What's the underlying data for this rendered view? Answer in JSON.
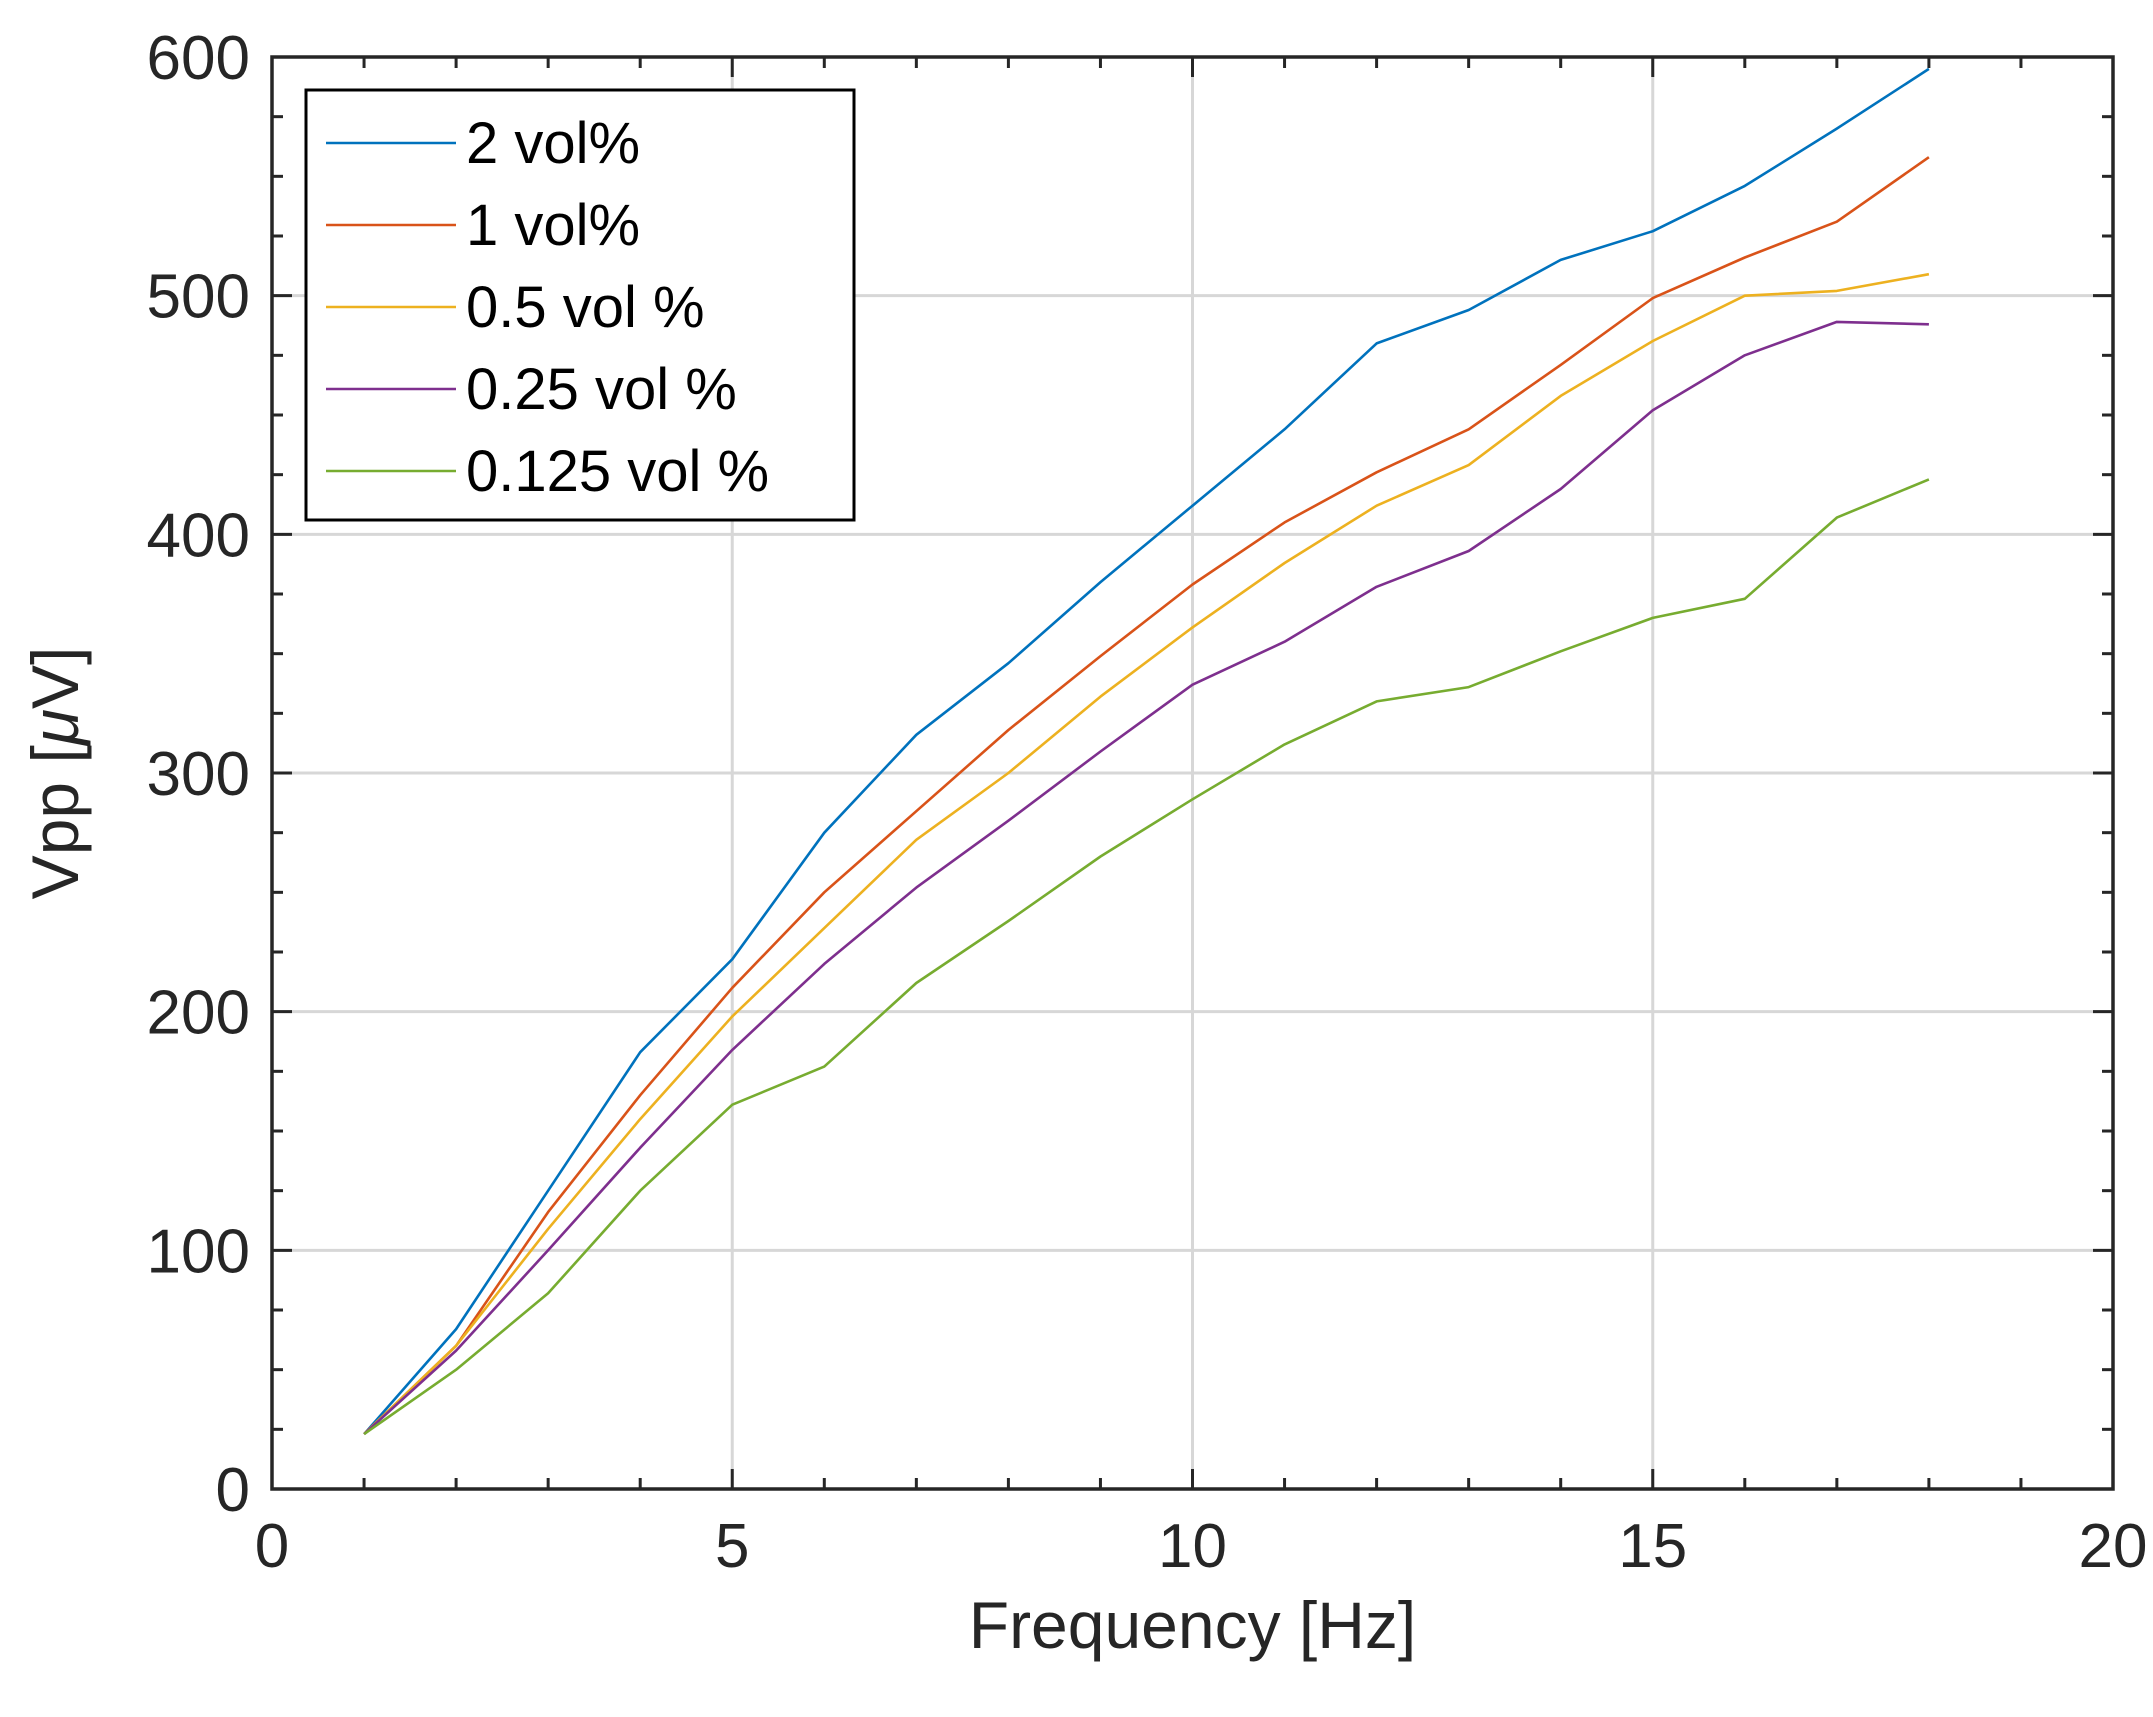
{
  "chart_data": {
    "type": "line",
    "title": "",
    "xlabel": "Frequency [Hz]",
    "ylabel_prefix": "Vpp [",
    "ylabel_mu": "μ",
    "ylabel_suffix": "V]",
    "xlim": [
      0,
      20
    ],
    "ylim": [
      0,
      600
    ],
    "xticks": [
      0,
      5,
      10,
      15,
      20
    ],
    "yticks": [
      0,
      100,
      200,
      300,
      400,
      500,
      600
    ],
    "grid": true,
    "legend_position": "top-left",
    "x": [
      1,
      2,
      3,
      4,
      5,
      6,
      7,
      8,
      9,
      10,
      11,
      12,
      13,
      14,
      15,
      16,
      17,
      18
    ],
    "series": [
      {
        "name": "2 vol%",
        "color": "#0072BD",
        "values": [
          23,
          67,
          125,
          183,
          222,
          275,
          316,
          346,
          380,
          412,
          444,
          480,
          494,
          515,
          527,
          546,
          570,
          595
        ]
      },
      {
        "name": "1 vol%",
        "color": "#D95319",
        "values": [
          23,
          60,
          116,
          165,
          210,
          250,
          284,
          318,
          349,
          379,
          405,
          426,
          444,
          471,
          499,
          516,
          531,
          558
        ]
      },
      {
        "name": "0.5 vol %",
        "color": "#EDB120",
        "values": [
          23,
          60,
          109,
          155,
          198,
          235,
          272,
          300,
          332,
          361,
          388,
          412,
          429,
          458,
          481,
          500,
          502,
          509
        ]
      },
      {
        "name": "0.25 vol %",
        "color": "#7E2F8E",
        "values": [
          23,
          58,
          100,
          143,
          184,
          220,
          252,
          280,
          309,
          337,
          355,
          378,
          393,
          419,
          452,
          475,
          489,
          488
        ]
      },
      {
        "name": "0.125 vol %",
        "color": "#77AC30",
        "values": [
          23,
          50,
          82,
          125,
          161,
          177,
          212,
          238,
          265,
          289,
          312,
          330,
          336,
          351,
          365,
          373,
          407,
          423
        ]
      }
    ]
  }
}
